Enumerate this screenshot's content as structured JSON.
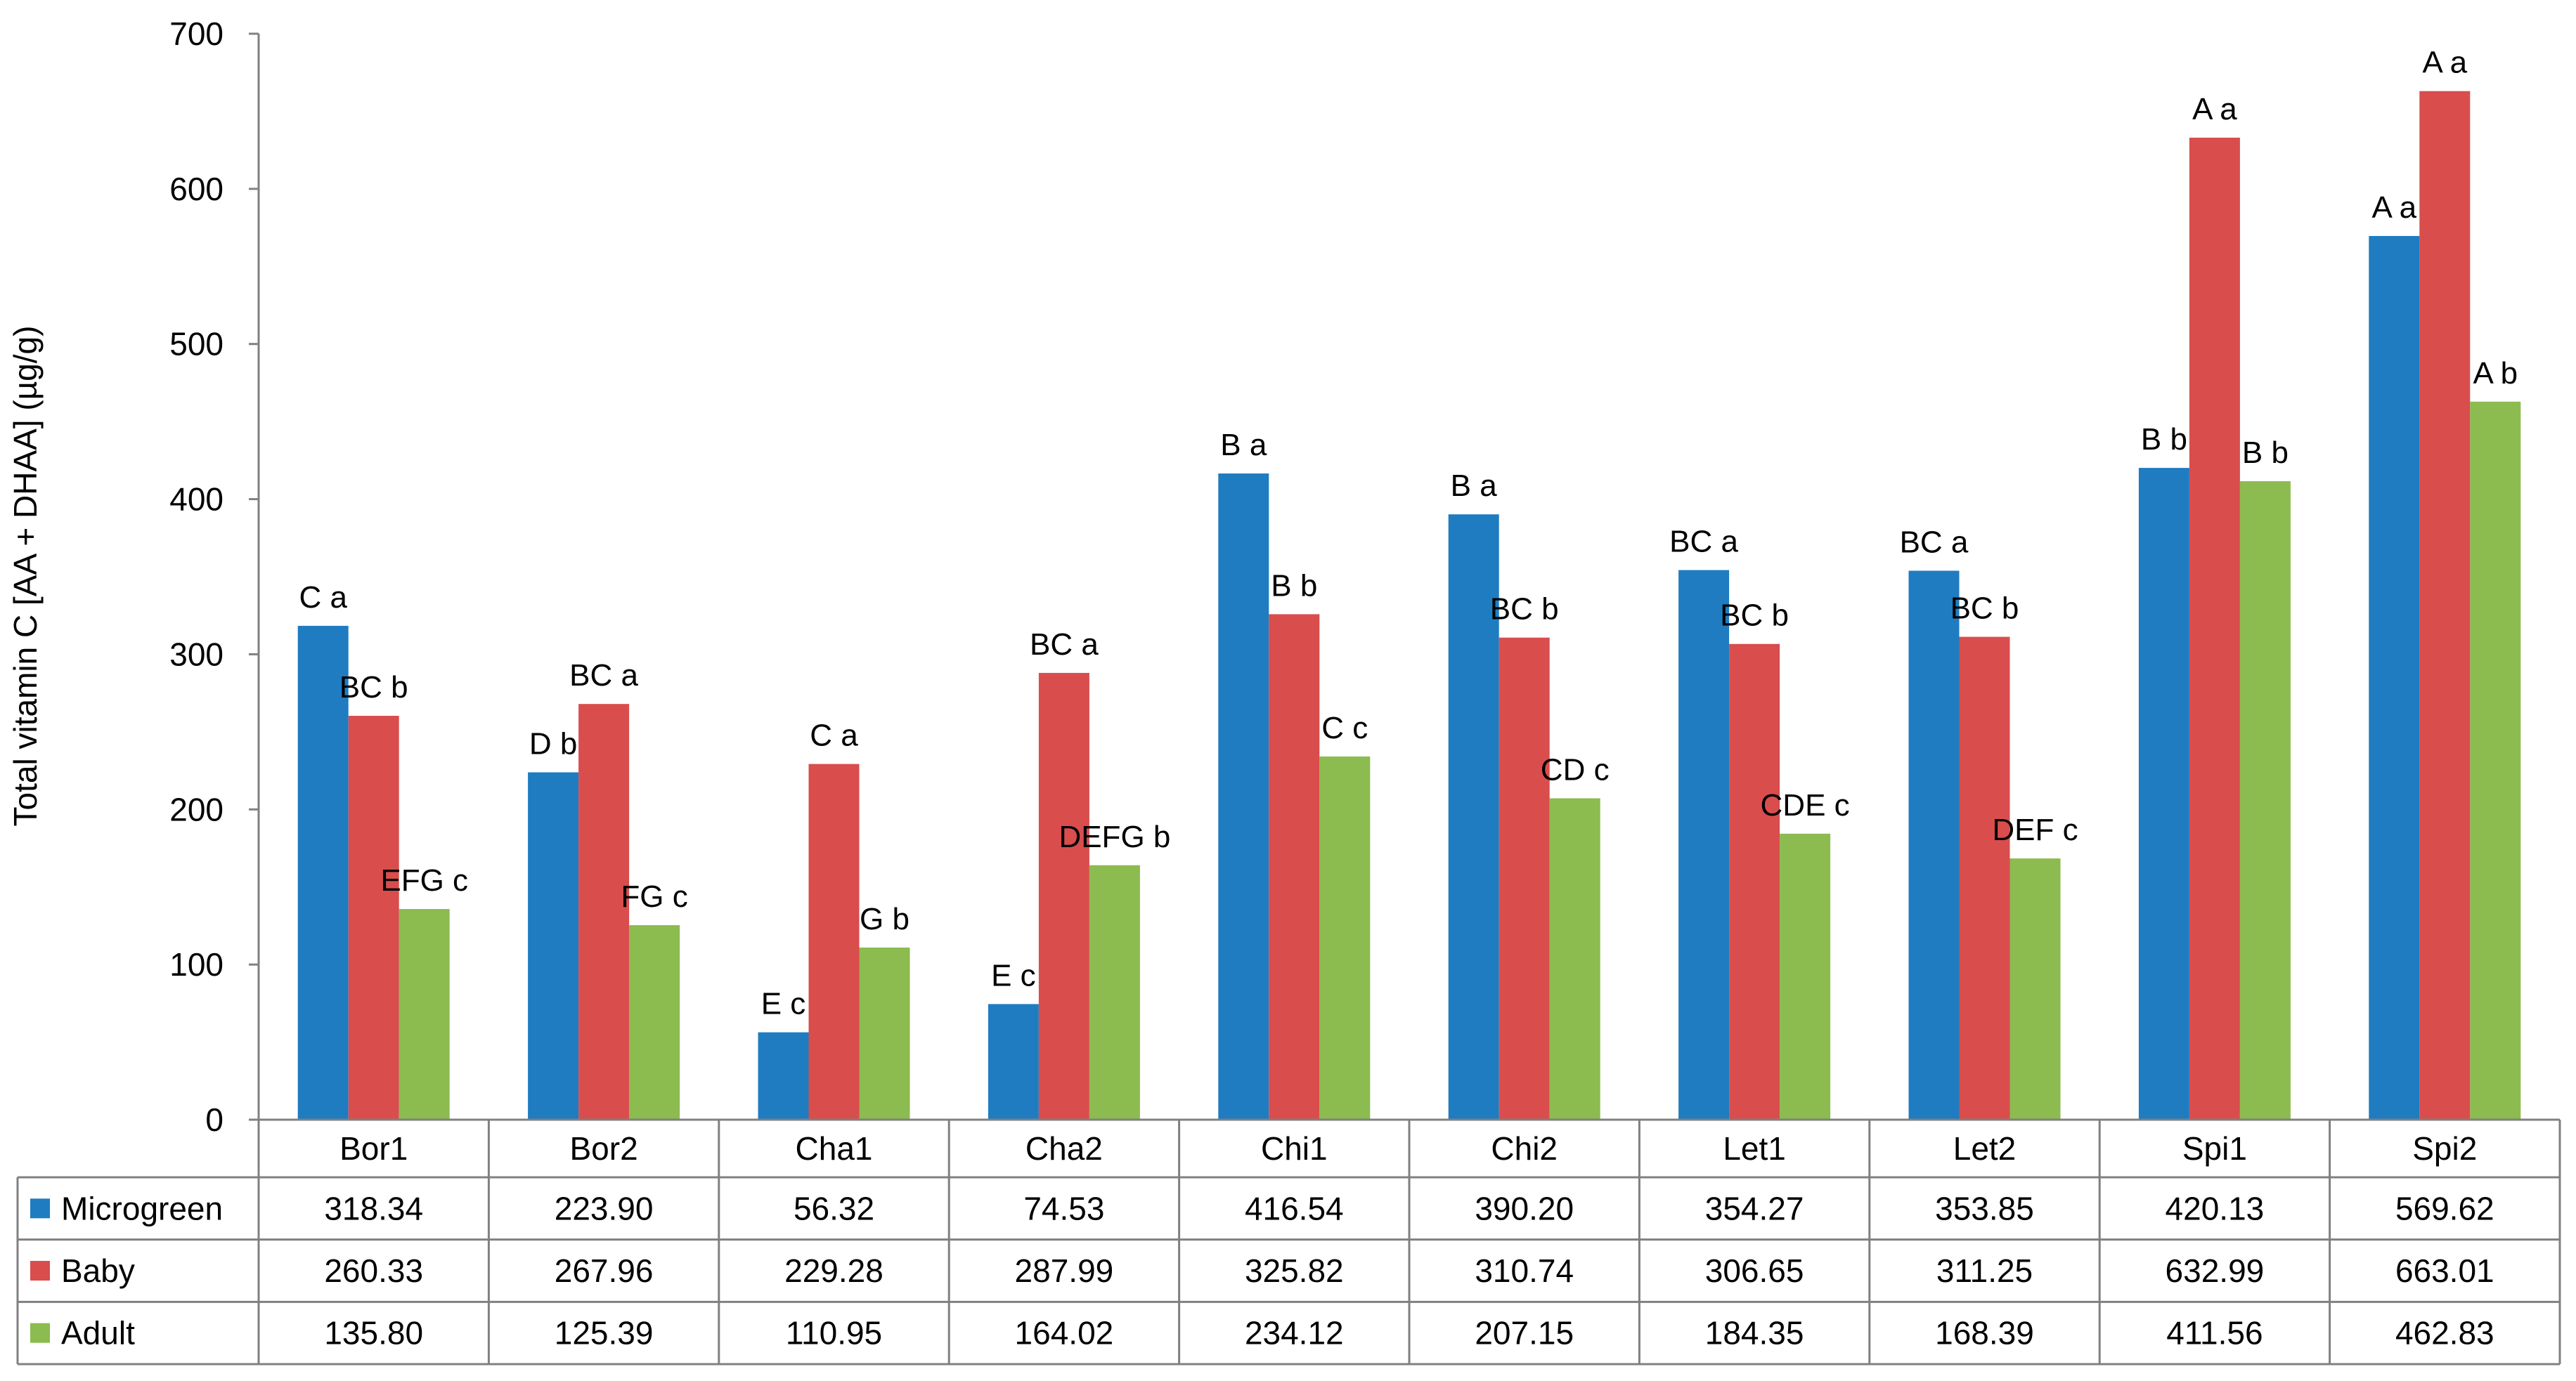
{
  "chart_data": {
    "type": "bar",
    "title": "",
    "xlabel": "",
    "ylabel": "Total vitamin C [AA + DHAA] (µg/g)",
    "ylim": [
      0,
      700
    ],
    "yticks": [
      0,
      100,
      200,
      300,
      400,
      500,
      600,
      700
    ],
    "grid": false,
    "legend": "data-table-left",
    "categories": [
      "Bor1",
      "Bor2",
      "Cha1",
      "Cha2",
      "Chi1",
      "Chi2",
      "Let1",
      "Let2",
      "Spi1",
      "Spi2"
    ],
    "series": [
      {
        "name": "Microgreen",
        "color": "#1f7cc1",
        "values": [
          318.34,
          223.9,
          56.32,
          74.53,
          416.54,
          390.2,
          354.27,
          353.85,
          420.13,
          569.62
        ],
        "display": [
          "318.34",
          "223.90",
          "56.32",
          "74.53",
          "416.54",
          "390.20",
          "354.27",
          "353.85",
          "420.13",
          "569.62"
        ],
        "labels": [
          "C a",
          "D b",
          "E c",
          "E c",
          "B a",
          "B a",
          "BC a",
          "BC a",
          "B b",
          "A a"
        ]
      },
      {
        "name": "Baby",
        "color": "#d94d4d",
        "values": [
          260.33,
          267.96,
          229.28,
          287.99,
          325.82,
          310.74,
          306.65,
          311.25,
          632.99,
          663.01
        ],
        "display": [
          "260.33",
          "267.96",
          "229.28",
          "287.99",
          "325.82",
          "310.74",
          "306.65",
          "311.25",
          "632.99",
          "663.01"
        ],
        "labels": [
          "BC b",
          "BC a",
          "C a",
          "BC a",
          "B b",
          "BC b",
          "BC b",
          "BC b",
          "A a",
          "A a"
        ]
      },
      {
        "name": "Adult",
        "color": "#8cbb4f",
        "values": [
          135.8,
          125.39,
          110.95,
          164.02,
          234.12,
          207.15,
          184.35,
          168.39,
          411.56,
          462.83
        ],
        "display": [
          "135.80",
          "125.39",
          "110.95",
          "164.02",
          "234.12",
          "207.15",
          "184.35",
          "168.39",
          "411.56",
          "462.83"
        ],
        "labels": [
          "EFG c",
          "FG c",
          "G b",
          "DEFG b",
          "C c",
          "CD c",
          "CDE c",
          "DEF c",
          "B b",
          "A b"
        ]
      }
    ]
  }
}
